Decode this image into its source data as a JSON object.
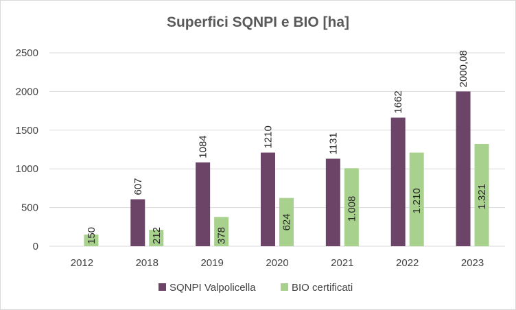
{
  "chart_data": {
    "type": "bar",
    "title": "Superfici SQNPI e BIO [ha]",
    "categories": [
      "2012",
      "2018",
      "2019",
      "2020",
      "2021",
      "2022",
      "2023"
    ],
    "series": [
      {
        "name": "SQNPI Valpolicella",
        "color": "#6b4468",
        "values": [
          null,
          607,
          1084,
          1210,
          1131,
          1662,
          2000.08
        ],
        "labels": [
          "",
          "607",
          "1084",
          "1210",
          "1131",
          "1662",
          "2000,08"
        ]
      },
      {
        "name": "BIO certificati",
        "color": "#a9d18e",
        "values": [
          150,
          212,
          378,
          624,
          1008,
          1210,
          1321
        ],
        "labels": [
          "150",
          "212",
          "378",
          "624",
          "1.008",
          "1.210",
          "1.321"
        ]
      }
    ],
    "ylim": [
      0,
      2500
    ],
    "yticks": [
      "0",
      "500",
      "1000",
      "1500",
      "2000",
      "2500"
    ],
    "ytick_values": [
      0,
      500,
      1000,
      1500,
      2000,
      2500
    ],
    "grid": true,
    "legend_position": "bottom",
    "gridline_color": "#d9d9d9"
  }
}
